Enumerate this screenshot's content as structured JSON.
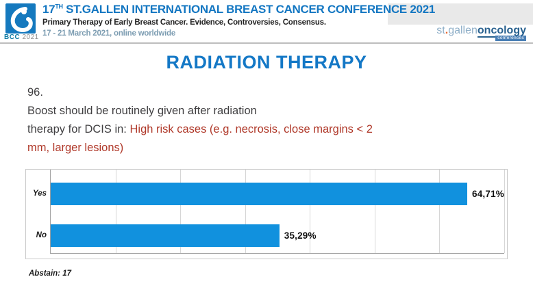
{
  "header": {
    "badge": {
      "acronym": "BCC",
      "year": "2021"
    },
    "title_num": "17",
    "title_sup": "TH",
    "title_rest": " ST.GALLEN INTERNATIONAL BREAST CANCER CONFERENCE 2021",
    "subtitle": "Primary Therapy of Early Breast Cancer. Evidence, Controversies, Consensus.",
    "dates": "17 - 21 March 2021, online worldwide",
    "right_logo": {
      "st": "st",
      "dot": ".",
      "gallen": "gallen",
      "oncology": "oncology",
      "tagline": "conferences"
    }
  },
  "slide": {
    "heading": "RADIATION THERAPY",
    "question_number": "96.",
    "q_line1": "Boost should be routinely given after radiation",
    "q_line2_dark": "therapy for DCIS in: ",
    "q_line2_red": "High risk cases (e.g. necrosis, close margins < 2",
    "q_line3_red": "mm, larger lesions)",
    "abstain_label": "Abstain: 17"
  },
  "colors": {
    "bar_blue": "#1191de",
    "heading_blue": "#1478c6",
    "header_blue": "#1477c2",
    "highlight_red": "#b0392a",
    "logo_square_blue": "#1579be"
  },
  "chart_data": {
    "type": "bar",
    "orientation": "horizontal",
    "title": "",
    "categories": [
      "Yes",
      "No"
    ],
    "values": [
      64.71,
      35.29
    ],
    "value_labels": [
      "64,71%",
      "35,29%"
    ],
    "xlim": [
      0,
      70
    ],
    "grid_step": 10,
    "grid": true,
    "legend": false,
    "abstain": 17
  }
}
